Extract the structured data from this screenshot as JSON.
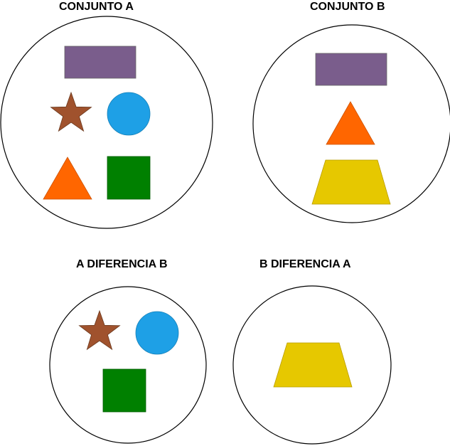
{
  "sets": [
    {
      "id": "a",
      "title": "CONJUNTO A",
      "shapes": [
        "rectangle",
        "star",
        "circle",
        "triangle",
        "square"
      ]
    },
    {
      "id": "b",
      "title": "CONJUNTO B",
      "shapes": [
        "rectangle",
        "triangle",
        "trapezoid"
      ]
    },
    {
      "id": "a-minus-b",
      "title": "A DIFERENCIA B",
      "shapes": [
        "star",
        "circle",
        "square"
      ]
    },
    {
      "id": "b-minus-a",
      "title": "B DIFERENCIA A",
      "shapes": [
        "trapezoid"
      ]
    }
  ],
  "colors": {
    "rectangle": "#7a5d8c",
    "star": "#a0522d",
    "circle": "#1ea0e6",
    "triangle": "#ff6600",
    "square": "#008000",
    "trapezoid": "#e6c800"
  }
}
